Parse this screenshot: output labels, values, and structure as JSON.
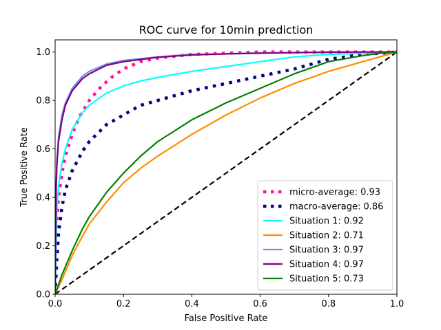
{
  "chart_data": {
    "type": "line",
    "title": "ROC curve for 10min prediction",
    "xlabel": "False Positive Rate",
    "ylabel": "True Positive Rate",
    "xlim": [
      0.0,
      1.0
    ],
    "ylim": [
      0.0,
      1.05
    ],
    "xticks": [
      0.0,
      0.2,
      0.4,
      0.6,
      0.8,
      1.0
    ],
    "yticks": [
      0.0,
      0.2,
      0.4,
      0.6,
      0.8,
      1.0
    ],
    "xtick_labels": [
      "0.0",
      "0.2",
      "0.4",
      "0.6",
      "0.8",
      "1.0"
    ],
    "ytick_labels": [
      "0.0",
      "0.2",
      "0.4",
      "0.6",
      "0.8",
      "1.0"
    ],
    "grid": false,
    "legend_position": "lower-right",
    "series": [
      {
        "name": "micro-average: 0.93",
        "color": "#ff1493",
        "style": "dotted-thick",
        "x": [
          0,
          0.005,
          0.01,
          0.02,
          0.03,
          0.05,
          0.07,
          0.1,
          0.13,
          0.16,
          0.2,
          0.25,
          0.3,
          0.4,
          0.5,
          0.6,
          0.7,
          0.8,
          0.9,
          1.0
        ],
        "y": [
          0,
          0.3,
          0.4,
          0.5,
          0.57,
          0.66,
          0.73,
          0.8,
          0.85,
          0.89,
          0.93,
          0.96,
          0.975,
          0.99,
          0.995,
          1.0,
          1.0,
          1.0,
          1.0,
          1.0
        ]
      },
      {
        "name": "macro-average: 0.86",
        "color": "#000080",
        "style": "dotted-thick",
        "x": [
          0,
          0.005,
          0.01,
          0.02,
          0.03,
          0.05,
          0.08,
          0.1,
          0.15,
          0.2,
          0.25,
          0.3,
          0.4,
          0.5,
          0.6,
          0.7,
          0.8,
          0.9,
          1.0
        ],
        "y": [
          0,
          0.14,
          0.25,
          0.36,
          0.43,
          0.51,
          0.59,
          0.63,
          0.7,
          0.74,
          0.78,
          0.8,
          0.84,
          0.87,
          0.9,
          0.93,
          0.97,
          0.99,
          1.0
        ]
      },
      {
        "name": "Situation 1: 0.92",
        "color": "#00ffff",
        "style": "solid",
        "x": [
          0,
          0.005,
          0.01,
          0.02,
          0.03,
          0.05,
          0.08,
          0.1,
          0.15,
          0.2,
          0.25,
          0.3,
          0.4,
          0.5,
          0.6,
          0.7,
          0.8,
          0.9,
          1.0
        ],
        "y": [
          0,
          0.35,
          0.45,
          0.54,
          0.6,
          0.68,
          0.75,
          0.78,
          0.83,
          0.86,
          0.88,
          0.895,
          0.92,
          0.94,
          0.96,
          0.98,
          0.99,
          0.995,
          1.0
        ]
      },
      {
        "name": "Situation 2: 0.71",
        "color": "#ff8c00",
        "style": "solid",
        "x": [
          0,
          0.02,
          0.05,
          0.08,
          0.1,
          0.15,
          0.2,
          0.25,
          0.3,
          0.4,
          0.5,
          0.6,
          0.7,
          0.8,
          0.9,
          0.95,
          1.0
        ],
        "y": [
          0,
          0.06,
          0.16,
          0.24,
          0.29,
          0.38,
          0.46,
          0.52,
          0.57,
          0.66,
          0.74,
          0.81,
          0.87,
          0.92,
          0.96,
          0.98,
          1.0
        ]
      },
      {
        "name": "Situation 3: 0.97",
        "color": "#6495ed",
        "style": "solid",
        "x": [
          0,
          0.003,
          0.005,
          0.01,
          0.02,
          0.03,
          0.05,
          0.08,
          0.1,
          0.15,
          0.2,
          0.3,
          0.4,
          0.5,
          0.6,
          0.7,
          0.8,
          0.9,
          1.0
        ],
        "y": [
          0,
          0.45,
          0.55,
          0.65,
          0.74,
          0.79,
          0.85,
          0.9,
          0.92,
          0.95,
          0.965,
          0.98,
          0.99,
          0.993,
          0.996,
          0.998,
          1.0,
          1.0,
          1.0
        ]
      },
      {
        "name": "Situation 4: 0.97",
        "color": "#800080",
        "style": "solid",
        "x": [
          0,
          0.003,
          0.005,
          0.01,
          0.02,
          0.03,
          0.05,
          0.08,
          0.1,
          0.15,
          0.2,
          0.3,
          0.4,
          0.5,
          0.6,
          0.7,
          0.8,
          0.9,
          1.0
        ],
        "y": [
          0,
          0.43,
          0.53,
          0.63,
          0.72,
          0.78,
          0.84,
          0.89,
          0.91,
          0.945,
          0.96,
          0.978,
          0.988,
          0.992,
          0.995,
          0.997,
          0.999,
          1.0,
          1.0
        ]
      },
      {
        "name": "Situation 5: 0.73",
        "color": "#008000",
        "style": "solid",
        "x": [
          0,
          0.02,
          0.05,
          0.08,
          0.1,
          0.15,
          0.2,
          0.25,
          0.3,
          0.4,
          0.5,
          0.6,
          0.7,
          0.8,
          0.9,
          0.95,
          1.0
        ],
        "y": [
          0,
          0.08,
          0.18,
          0.27,
          0.32,
          0.42,
          0.5,
          0.57,
          0.63,
          0.72,
          0.79,
          0.85,
          0.91,
          0.96,
          0.985,
          0.995,
          1.0
        ]
      }
    ],
    "reference_line": {
      "color": "#000000",
      "style": "dashed",
      "x": [
        0,
        1
      ],
      "y": [
        0,
        1
      ]
    }
  }
}
